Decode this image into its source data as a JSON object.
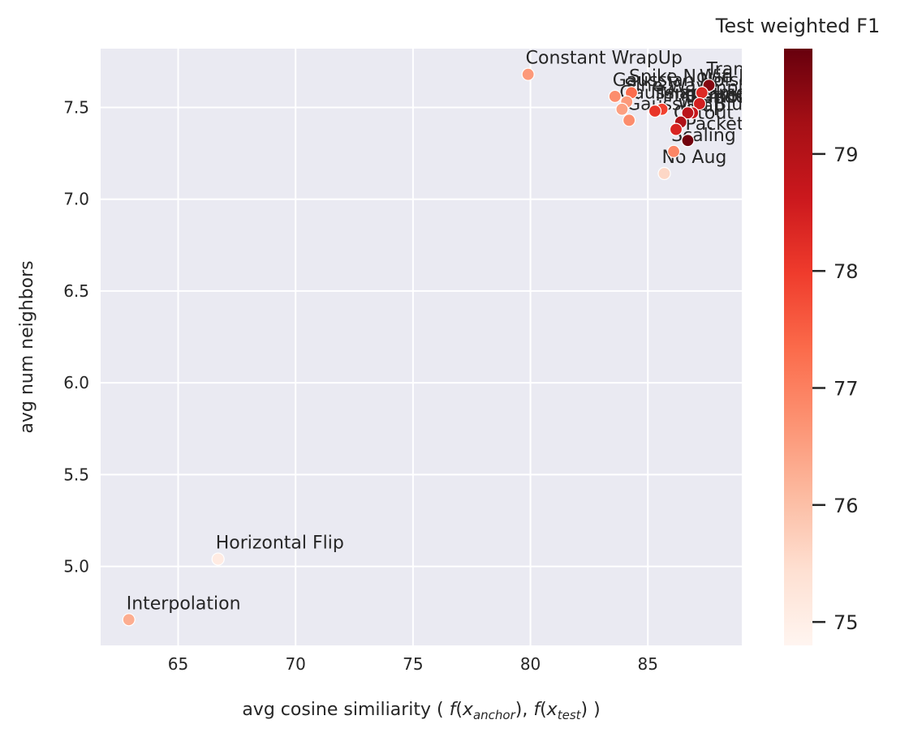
{
  "chart_data": {
    "type": "scatter",
    "xlabel_parts": {
      "prefix": "avg cosine similiarity ( ",
      "f1": "f",
      "x1": "x",
      "sub1": "anchor",
      "sep": "), ",
      "f2": "f",
      "x2": "x",
      "sub2": "test",
      "suffix": ") )"
    },
    "ylabel": "avg num neighbors",
    "xlim": [
      61.7,
      89.0
    ],
    "ylim": [
      4.57,
      7.82
    ],
    "xticks": [
      65,
      70,
      75,
      80,
      85
    ],
    "yticks": [
      5.0,
      5.5,
      6.0,
      6.5,
      7.0,
      7.5
    ],
    "grid": true,
    "colorbar": {
      "title": "Test weighted F1",
      "range": [
        74.8,
        79.9
      ],
      "ticks": [
        75,
        76,
        77,
        78,
        79
      ],
      "colormap": "Reds"
    },
    "points": [
      {
        "label": "Constant WrapUp",
        "x": 79.9,
        "y": 7.68,
        "f1": 76.6
      },
      {
        "label": "Translation",
        "x": 87.6,
        "y": 7.62,
        "f1": 79.6
      },
      {
        "label": "Spike Noise",
        "x": 84.3,
        "y": 7.58,
        "f1": 77.3
      },
      {
        "label": "Wifi Perimeter",
        "x": 87.3,
        "y": 7.58,
        "f1": 78.3
      },
      {
        "label": "Gaussian Noise",
        "x": 83.6,
        "y": 7.56,
        "f1": 76.8
      },
      {
        "label": "Sine Wave",
        "x": 84.1,
        "y": 7.53,
        "f1": 76.6
      },
      {
        "label": "Amplitude Scale",
        "x": 87.2,
        "y": 7.52,
        "f1": 78.5
      },
      {
        "label": "Mixup",
        "x": 85.6,
        "y": 7.49,
        "f1": 77.9
      },
      {
        "label": "Random Mask",
        "x": 86.9,
        "y": 7.47,
        "f1": 78.7
      },
      {
        "label": "Gaussian Smoothing",
        "x": 83.9,
        "y": 7.49,
        "f1": 76.5
      },
      {
        "label": "Time Stretch",
        "x": 85.3,
        "y": 7.48,
        "f1": 78.1
      },
      {
        "label": "Bernoulli Mask",
        "x": 86.7,
        "y": 7.47,
        "f1": 78.9
      },
      {
        "label": "Gaussian Blur",
        "x": 84.2,
        "y": 7.43,
        "f1": 76.8
      },
      {
        "label": "Wrap",
        "x": 86.4,
        "y": 7.42,
        "f1": 79.1
      },
      {
        "label": "Cutout",
        "x": 86.2,
        "y": 7.38,
        "f1": 78.4
      },
      {
        "label": "Packet Loss",
        "x": 86.7,
        "y": 7.32,
        "f1": 79.8
      },
      {
        "label": "Scaling",
        "x": 86.1,
        "y": 7.26,
        "f1": 76.9
      },
      {
        "label": "No Aug",
        "x": 85.7,
        "y": 7.14,
        "f1": 75.6
      },
      {
        "label": "Horizontal Flip",
        "x": 66.7,
        "y": 5.04,
        "f1": 75.1
      },
      {
        "label": "Interpolation",
        "x": 62.9,
        "y": 4.71,
        "f1": 76.3
      }
    ],
    "visible_labels": {
      "Constant WrapUp": "Constant WrapUp",
      "Translation": "Translation",
      "Spike Noise": "Spike Noise",
      "Wifi Perimeter": "Wifi Perimetr",
      "Gaussian Noise": "Gaussian Noise",
      "Sine Wave": "Sine Wave",
      "Amplitude Scale": "Amplitude Scale",
      "Mixup": "Mixup",
      "Random Mask": "Random Mask",
      "Gaussian Smoothing": "Gaussian Smoothing",
      "Time Stretch": "Time Stretch",
      "Bernoulli Mask": "Bernoulli Mask",
      "Gaussian Blur": "Gaussian Blur",
      "Wrap": "Wrap",
      "Cutout": "Cutout",
      "Packet Loss": "Packet Loss",
      "Scaling": "Scaling",
      "No Aug": "No Aug",
      "Horizontal Flip": "Horizontal Flip",
      "Interpolation": "Interpolation"
    }
  }
}
